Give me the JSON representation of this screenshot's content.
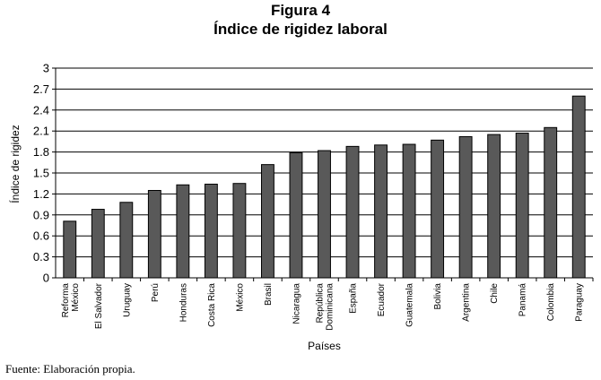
{
  "figure": {
    "label": "Figura 4",
    "title": "Índice de rigidez laboral",
    "source": "Fuente: Elaboración propia."
  },
  "chart_data": {
    "type": "bar",
    "title": "Índice de rigidez laboral",
    "xlabel": "Países",
    "ylabel": "Índice de rigidez",
    "ylim": [
      0,
      3
    ],
    "yticks": [
      "0",
      "0.3",
      "0.6",
      "0.9",
      "1.2",
      "1.5",
      "1.8",
      "2.1",
      "2.4",
      "2.7",
      "3"
    ],
    "grid": true,
    "bar_color": "#595959",
    "categories": [
      [
        "Reforma",
        "México"
      ],
      [
        "El Salvador"
      ],
      [
        "Uruguay"
      ],
      [
        "Perú"
      ],
      [
        "Honduras"
      ],
      [
        "Costa Rica"
      ],
      [
        "México"
      ],
      [
        "Brasil"
      ],
      [
        "Nicaragua"
      ],
      [
        "República",
        "Dominicana"
      ],
      [
        "España"
      ],
      [
        "Ecuador"
      ],
      [
        "Guatemala"
      ],
      [
        "Bolivia"
      ],
      [
        "Argentina"
      ],
      [
        "Chile"
      ],
      [
        "Panamá"
      ],
      [
        "Colombia"
      ],
      [
        "Paraguay"
      ]
    ],
    "values": [
      0.81,
      0.98,
      1.08,
      1.25,
      1.33,
      1.34,
      1.35,
      1.62,
      1.79,
      1.82,
      1.88,
      1.9,
      1.91,
      1.97,
      2.02,
      2.05,
      2.07,
      2.15,
      2.6
    ]
  }
}
